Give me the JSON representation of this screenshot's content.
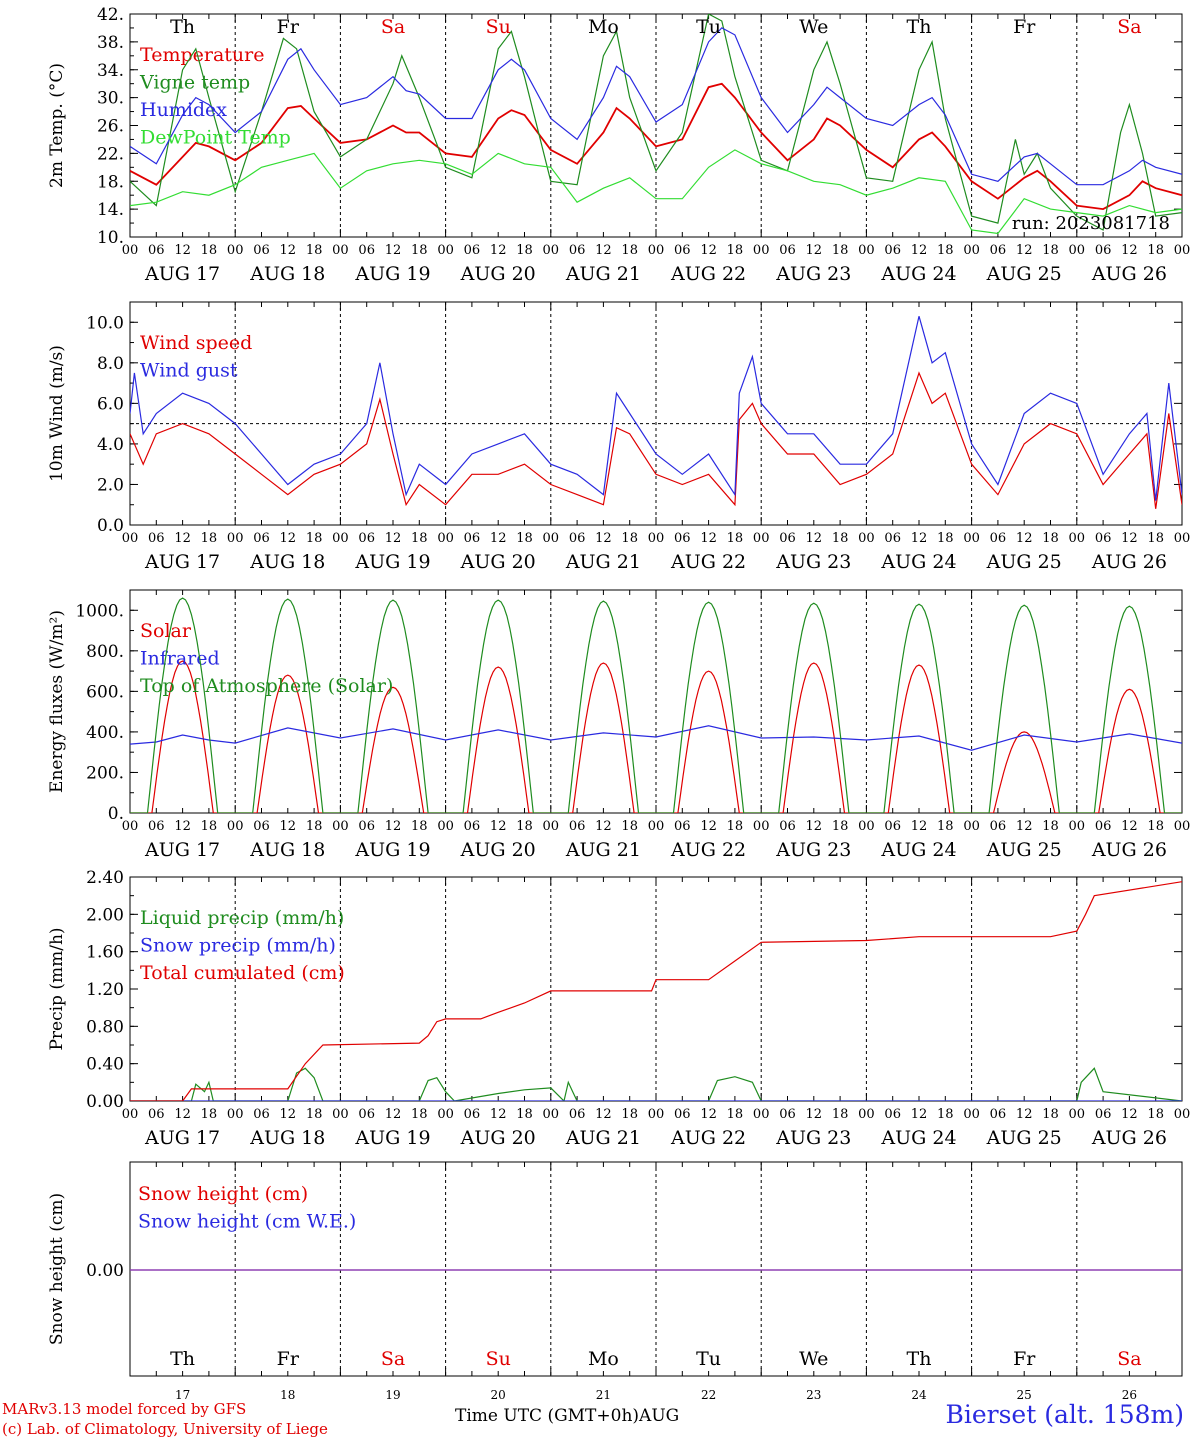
{
  "meta": {
    "run_label": "run: 2023081718",
    "station": "Bierset (alt. 158m)",
    "credit_line1": "MARv3.13 model forced by GFS",
    "credit_line2": "(c) Lab. of Climatology, University of Liege",
    "x_title": "Time UTC (GMT+0h)",
    "x_month": "AUG"
  },
  "colors": {
    "red": "#e00000",
    "dark_green": "#1f8c1f",
    "blue": "#2a2ae0",
    "light_green": "#33dd33",
    "snow_line": "#8a3ab0"
  },
  "days": [
    {
      "dow": "Th",
      "weekend": false,
      "date": "AUG 17",
      "num": "17"
    },
    {
      "dow": "Fr",
      "weekend": false,
      "date": "AUG 18",
      "num": "18"
    },
    {
      "dow": "Sa",
      "weekend": true,
      "date": "AUG 19",
      "num": "19"
    },
    {
      "dow": "Su",
      "weekend": true,
      "date": "AUG 20",
      "num": "20"
    },
    {
      "dow": "Mo",
      "weekend": false,
      "date": "AUG 21",
      "num": "21"
    },
    {
      "dow": "Tu",
      "weekend": false,
      "date": "AUG 22",
      "num": "22"
    },
    {
      "dow": "We",
      "weekend": false,
      "date": "AUG 23",
      "num": "23"
    },
    {
      "dow": "Th",
      "weekend": false,
      "date": "AUG 24",
      "num": "24"
    },
    {
      "dow": "Fr",
      "weekend": false,
      "date": "AUG 25",
      "num": "25"
    },
    {
      "dow": "Sa",
      "weekend": true,
      "date": "AUG 26",
      "num": "26"
    }
  ],
  "hour_ticks": [
    "00",
    "06",
    "12",
    "18"
  ],
  "chart_data": [
    {
      "type": "line",
      "panel": "temperature",
      "ylabel": "2m Temp. (°C)",
      "ylim": [
        10,
        42
      ],
      "yticks": [
        "10.",
        "14.",
        "18.",
        "22.",
        "26.",
        "30.",
        "34.",
        "38.",
        "42."
      ],
      "x_unit": "hours since AUG 17 00 UTC",
      "xlim": [
        0,
        240
      ],
      "series": [
        {
          "name": "Temperature",
          "color": "red",
          "x": [
            0,
            6,
            12,
            15,
            18,
            24,
            30,
            36,
            39,
            42,
            48,
            54,
            60,
            63,
            66,
            72,
            78,
            84,
            87,
            90,
            96,
            102,
            108,
            111,
            114,
            120,
            126,
            132,
            135,
            138,
            144,
            150,
            156,
            159,
            162,
            168,
            174,
            180,
            183,
            186,
            192,
            198,
            204,
            207,
            210,
            216,
            222,
            228,
            231,
            234,
            240
          ],
          "values": [
            19.5,
            17.5,
            21.5,
            23.5,
            23,
            21,
            23.5,
            28.5,
            28.8,
            27,
            23.5,
            24,
            26,
            25,
            25,
            22,
            21.5,
            27,
            28.2,
            27.5,
            22.5,
            20.5,
            25,
            28.5,
            27,
            23,
            24,
            31.5,
            32,
            30,
            25,
            21,
            24,
            27,
            26,
            22.5,
            20,
            24,
            25,
            23,
            18,
            15.5,
            18.5,
            19.5,
            18,
            14.5,
            14,
            16,
            18,
            17,
            16
          ]
        },
        {
          "name": "Vigne temp",
          "color": "dark_green",
          "x": [
            0,
            6,
            12,
            15,
            18,
            24,
            30,
            35,
            38,
            42,
            48,
            54,
            60,
            62,
            66,
            72,
            78,
            84,
            87,
            90,
            96,
            102,
            108,
            111,
            114,
            120,
            126,
            132,
            135,
            138,
            144,
            150,
            156,
            159,
            162,
            168,
            174,
            180,
            183,
            186,
            192,
            198,
            202,
            204,
            207,
            210,
            216,
            222,
            226,
            228,
            231,
            234,
            240
          ],
          "values": [
            18,
            14.5,
            34,
            37,
            30,
            16.5,
            28,
            38.5,
            37,
            28,
            21.5,
            24,
            32,
            36,
            30,
            20,
            18.5,
            37,
            39.5,
            33,
            18,
            17.5,
            36,
            39.5,
            30,
            19.5,
            25,
            42,
            41,
            33,
            21,
            19.5,
            34,
            38,
            32,
            18.5,
            18,
            34,
            38,
            27,
            13,
            12,
            24,
            19,
            22,
            17,
            13,
            11,
            25,
            29,
            22,
            13,
            13.5
          ]
        },
        {
          "name": "Humidex",
          "color": "blue",
          "x": [
            0,
            6,
            12,
            15,
            18,
            24,
            30,
            36,
            39,
            42,
            48,
            54,
            60,
            63,
            66,
            72,
            78,
            84,
            87,
            90,
            96,
            102,
            108,
            111,
            114,
            120,
            126,
            132,
            135,
            138,
            144,
            150,
            156,
            159,
            162,
            168,
            174,
            180,
            183,
            186,
            192,
            198,
            204,
            207,
            210,
            216,
            222,
            228,
            231,
            234,
            240
          ],
          "values": [
            23,
            20.5,
            27.5,
            30,
            29,
            25,
            28,
            35.5,
            37,
            34,
            29,
            30,
            33,
            31,
            30.5,
            27,
            27,
            34,
            35.5,
            34,
            27,
            24,
            30,
            34.5,
            33,
            26.5,
            29,
            38,
            40,
            39,
            30,
            25,
            29,
            31.5,
            30,
            27,
            26,
            29,
            30,
            27.5,
            19,
            18,
            21.5,
            22,
            20.5,
            17.5,
            17.5,
            19.5,
            21,
            20,
            19
          ]
        },
        {
          "name": "DewPoint Temp",
          "color": "light_green",
          "x": [
            0,
            6,
            12,
            18,
            24,
            30,
            36,
            42,
            48,
            54,
            60,
            66,
            72,
            78,
            84,
            90,
            96,
            102,
            108,
            114,
            120,
            126,
            132,
            138,
            144,
            150,
            156,
            162,
            168,
            174,
            180,
            186,
            192,
            198,
            204,
            210,
            216,
            222,
            228,
            234,
            240
          ],
          "values": [
            14.5,
            15,
            16.5,
            16,
            17.5,
            20,
            21,
            22,
            17,
            19.5,
            20.5,
            21,
            20.5,
            19,
            22,
            20.5,
            20,
            15,
            17,
            18.5,
            15.5,
            15.5,
            20,
            22.5,
            20.5,
            19.5,
            18,
            17.5,
            16,
            17,
            18.5,
            18,
            11,
            10.5,
            15.5,
            14,
            13.5,
            13,
            14.5,
            13.5,
            14
          ]
        }
      ]
    },
    {
      "type": "line",
      "panel": "wind",
      "ylabel": "10m Wind (m/s)",
      "ylim": [
        0,
        11
      ],
      "yticks": [
        "0.0",
        "2.0",
        "4.0",
        "6.0",
        "8.0",
        "10.0"
      ],
      "reference_line": 5,
      "xlim": [
        0,
        240
      ],
      "series": [
        {
          "name": "Wind speed",
          "color": "red",
          "x": [
            0,
            3,
            6,
            12,
            18,
            24,
            30,
            36,
            42,
            48,
            54,
            57,
            60,
            63,
            66,
            72,
            78,
            84,
            90,
            96,
            102,
            108,
            111,
            114,
            120,
            126,
            132,
            138,
            139,
            142,
            144,
            150,
            156,
            162,
            168,
            174,
            180,
            183,
            186,
            192,
            198,
            204,
            210,
            216,
            222,
            228,
            232,
            234,
            237,
            240
          ],
          "values": [
            4.5,
            3,
            4.5,
            5,
            4.5,
            3.5,
            2.5,
            1.5,
            2.5,
            3,
            4,
            6.2,
            3.5,
            1,
            2,
            1,
            2.5,
            2.5,
            3,
            2,
            1.5,
            1,
            4.8,
            4.5,
            2.5,
            2,
            2.5,
            1,
            5.2,
            6,
            5,
            3.5,
            3.5,
            2,
            2.5,
            3.5,
            7.5,
            6,
            6.5,
            3,
            1.5,
            4,
            5,
            4.5,
            2,
            3.5,
            4.5,
            0.8,
            5.5,
            1
          ]
        },
        {
          "name": "Wind gust",
          "color": "blue",
          "x": [
            0,
            1,
            3,
            6,
            12,
            18,
            24,
            30,
            36,
            42,
            48,
            54,
            57,
            60,
            63,
            66,
            72,
            78,
            84,
            90,
            96,
            102,
            108,
            111,
            114,
            120,
            126,
            132,
            138,
            139,
            142,
            144,
            150,
            156,
            162,
            168,
            174,
            180,
            183,
            186,
            192,
            198,
            204,
            210,
            216,
            222,
            228,
            232,
            234,
            237,
            240
          ],
          "values": [
            5.5,
            7.5,
            4.5,
            5.5,
            6.5,
            6,
            5,
            3.5,
            2,
            3,
            3.5,
            5,
            8,
            4.5,
            1.5,
            3,
            2,
            3.5,
            4,
            4.5,
            3,
            2.5,
            1.5,
            6.5,
            5.5,
            3.5,
            2.5,
            3.5,
            1.5,
            6.5,
            8.3,
            6,
            4.5,
            4.5,
            3,
            3,
            4.5,
            10.3,
            8,
            8.5,
            4,
            2,
            5.5,
            6.5,
            6,
            2.5,
            4.5,
            5.5,
            1.2,
            7,
            1.5
          ]
        }
      ]
    },
    {
      "type": "line",
      "panel": "energy",
      "ylabel": "Energy fluxes (W/m²)",
      "ylim": [
        0,
        1100
      ],
      "yticks": [
        "0.",
        "200.",
        "400.",
        "600.",
        "800.",
        "1000."
      ],
      "xlim": [
        0,
        240
      ],
      "series": [
        {
          "name": "Solar",
          "color": "red",
          "day_peaks": [
            750,
            680,
            620,
            720,
            740,
            700,
            740,
            730,
            400,
            610
          ]
        },
        {
          "name": "Infrared",
          "color": "blue",
          "x": [
            0,
            6,
            12,
            18,
            24,
            36,
            48,
            60,
            72,
            84,
            96,
            108,
            120,
            132,
            144,
            156,
            168,
            180,
            192,
            204,
            216,
            228,
            240
          ],
          "values": [
            340,
            350,
            385,
            360,
            345,
            420,
            370,
            415,
            360,
            410,
            360,
            395,
            375,
            430,
            370,
            375,
            360,
            380,
            310,
            385,
            350,
            390,
            345
          ]
        },
        {
          "name": "Top of Atmosphere (Solar)",
          "color": "dark_green",
          "day_peaks": [
            1060,
            1055,
            1050,
            1050,
            1045,
            1040,
            1035,
            1030,
            1025,
            1020
          ]
        }
      ]
    },
    {
      "type": "line",
      "panel": "precip",
      "ylabel": "Precip (mm/h)",
      "ylim": [
        0,
        2.4
      ],
      "yticks": [
        "0.00",
        "0.40",
        "0.80",
        "1.20",
        "1.60",
        "2.00",
        "2.40"
      ],
      "xlim": [
        0,
        240
      ],
      "series": [
        {
          "name": "Liquid precip (mm/h)",
          "color": "dark_green",
          "x": [
            0,
            14,
            15,
            17,
            18,
            19,
            36,
            38,
            40,
            42,
            44,
            66,
            68,
            70,
            72,
            74,
            84,
            90,
            96,
            99,
            100,
            101,
            102,
            132,
            134,
            138,
            142,
            144,
            216,
            217,
            220,
            222,
            240
          ],
          "values": [
            0,
            0,
            0.18,
            0.1,
            0.2,
            0,
            0,
            0.3,
            0.35,
            0.25,
            0,
            0,
            0.22,
            0.25,
            0.1,
            0,
            0.08,
            0.12,
            0.14,
            0,
            0.2,
            0.1,
            0,
            0,
            0.22,
            0.26,
            0.2,
            0,
            0,
            0.2,
            0.35,
            0.1,
            0
          ]
        },
        {
          "name": "Snow precip (mm/h)",
          "color": "blue",
          "x": [
            0,
            240
          ],
          "values": [
            0,
            0
          ]
        },
        {
          "name": "Total cumulated (cm)",
          "color": "red",
          "x": [
            0,
            12,
            14,
            18,
            36,
            40,
            44,
            66,
            68,
            70,
            72,
            80,
            84,
            90,
            96,
            102,
            108,
            114,
            119,
            120,
            126,
            132,
            138,
            144,
            168,
            180,
            210,
            216,
            218,
            220,
            240
          ],
          "values": [
            0,
            0,
            0.13,
            0.13,
            0.13,
            0.4,
            0.6,
            0.62,
            0.7,
            0.85,
            0.88,
            0.88,
            0.95,
            1.05,
            1.18,
            1.18,
            1.18,
            1.18,
            1.18,
            1.3,
            1.3,
            1.3,
            1.5,
            1.7,
            1.72,
            1.76,
            1.76,
            1.82,
            2.0,
            2.2,
            2.35
          ]
        }
      ]
    },
    {
      "type": "line",
      "panel": "snow",
      "ylabel": "Snow height (cm)",
      "yticks": [
        "0.00"
      ],
      "xlim": [
        0,
        240
      ],
      "series": [
        {
          "name": "Snow height (cm)",
          "color": "red",
          "x": [
            0,
            240
          ],
          "values": [
            0,
            0
          ]
        },
        {
          "name": "Snow height (cm W.E.)",
          "color": "blue",
          "x": [
            0,
            240
          ],
          "values": [
            0,
            0
          ]
        }
      ]
    }
  ]
}
